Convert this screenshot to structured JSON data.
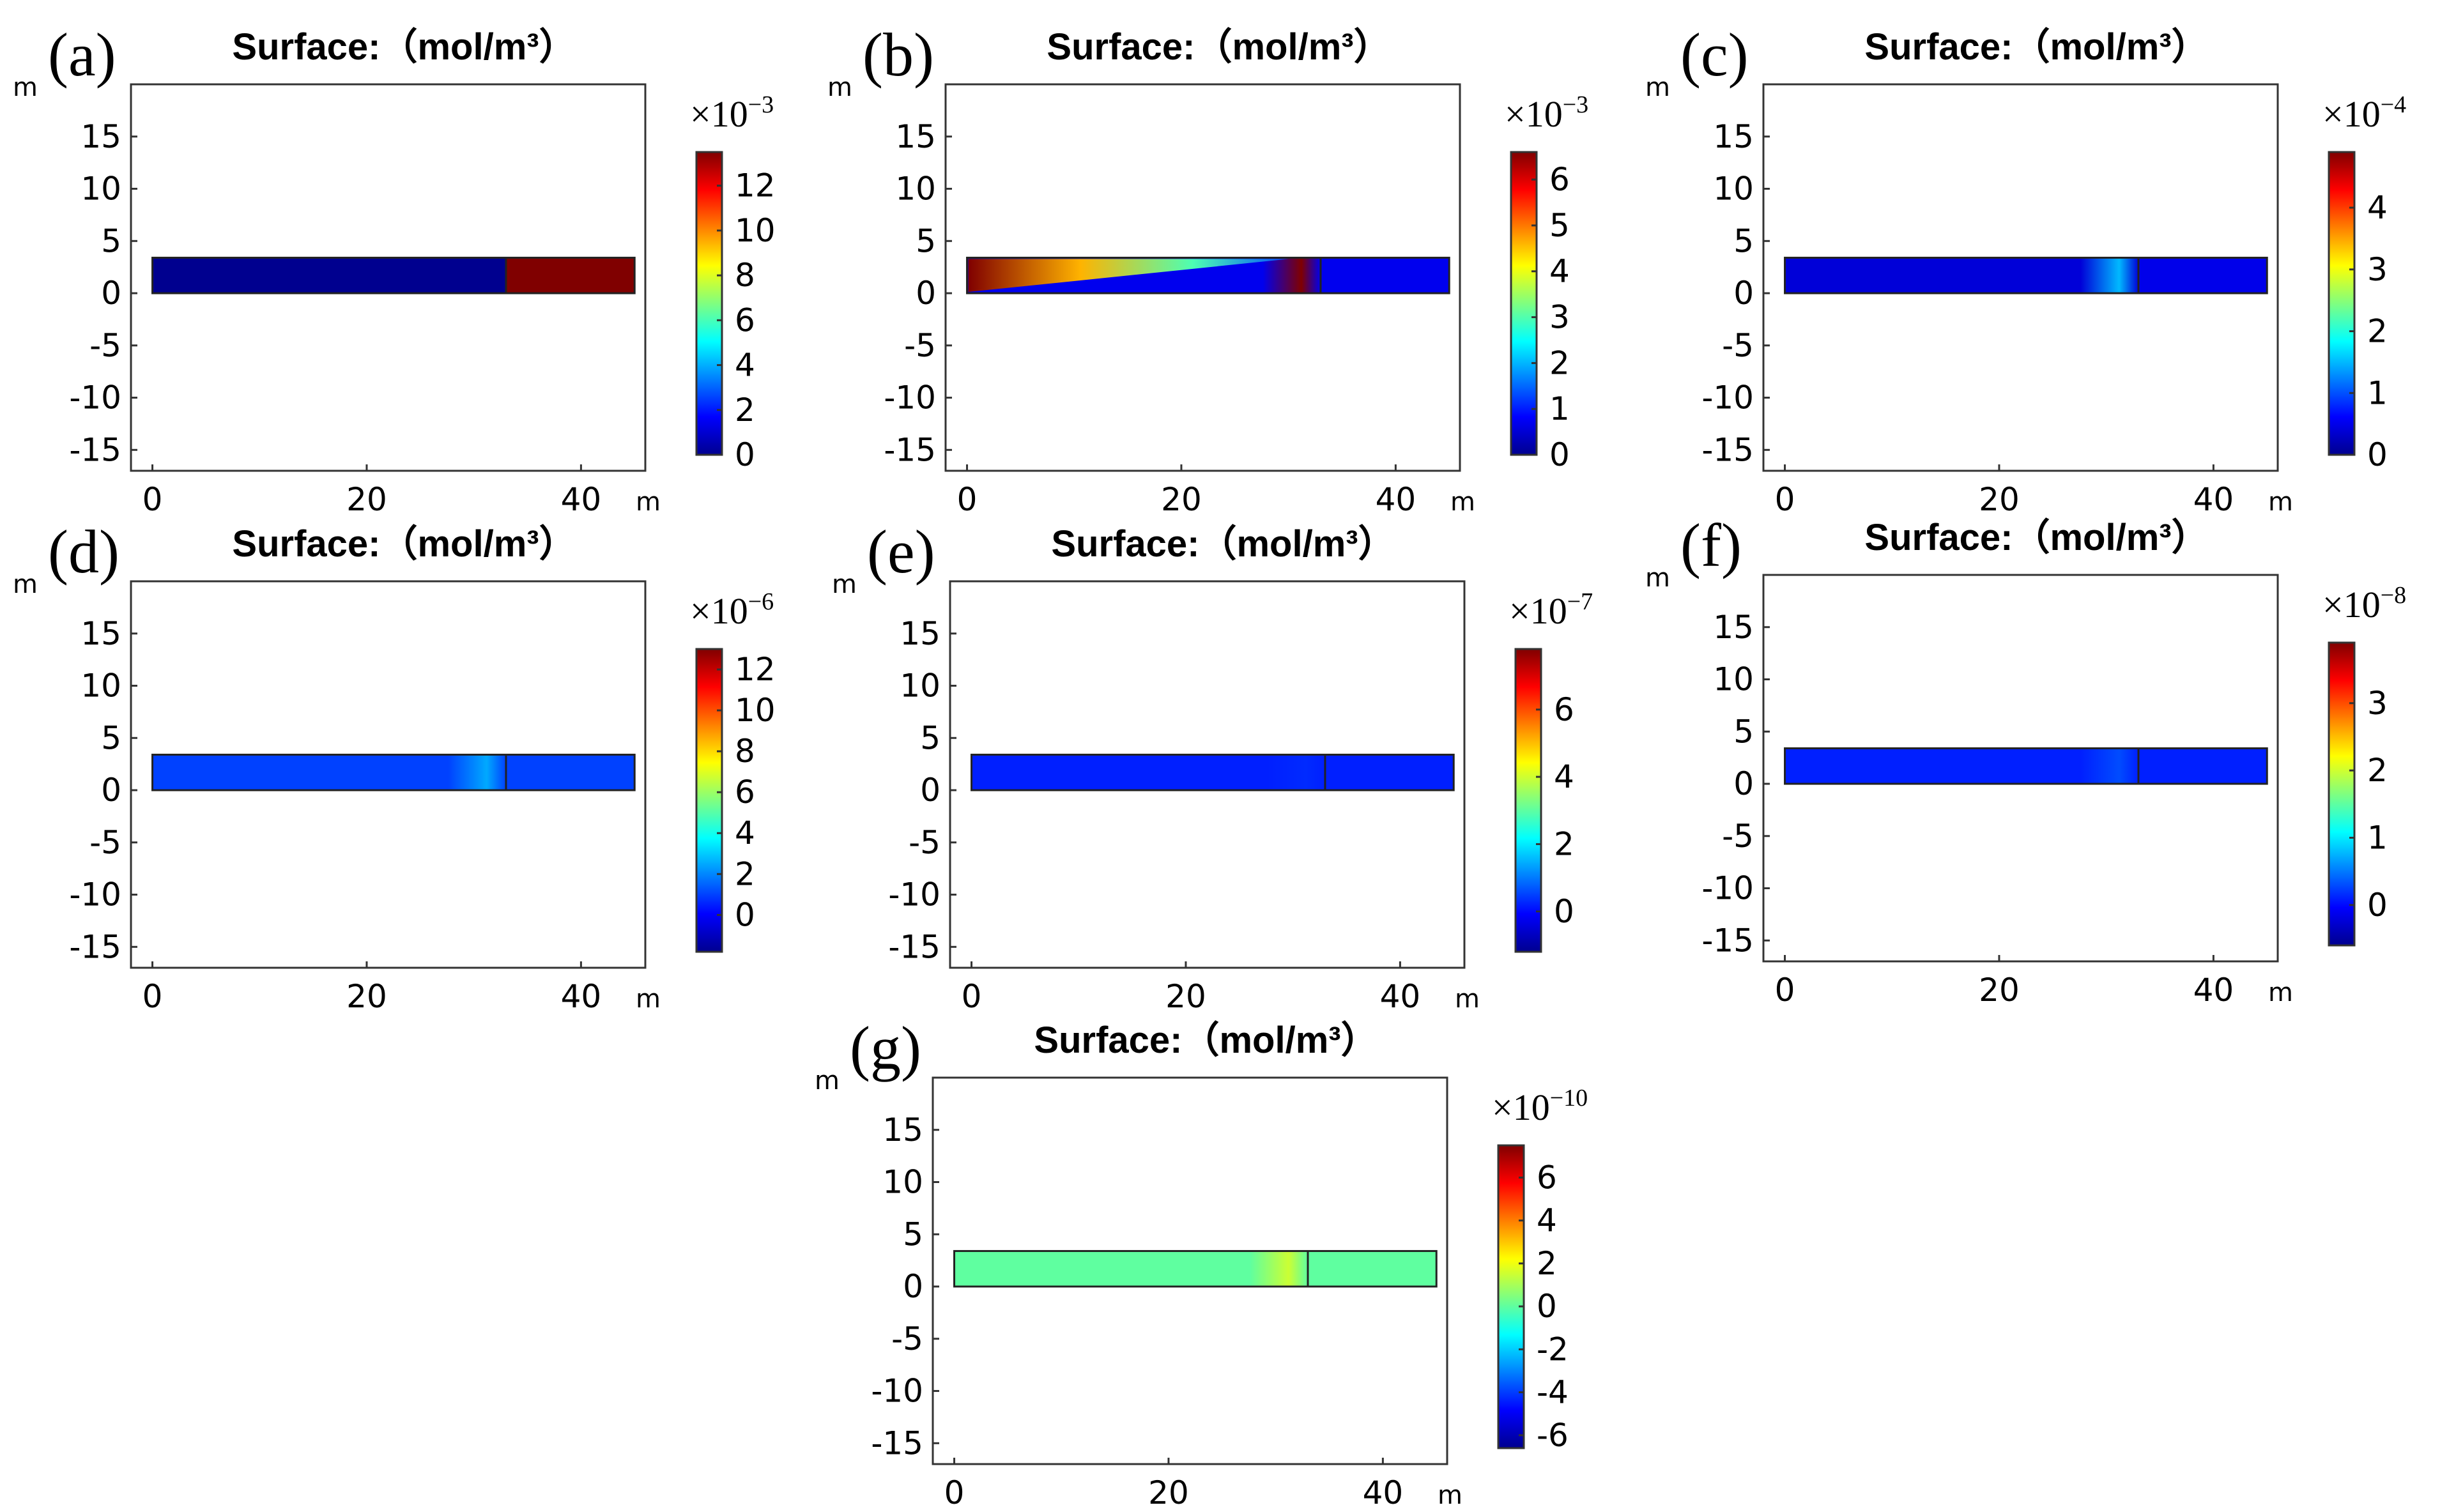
{
  "chart_data": [
    {
      "type": "heatmap",
      "panel": "(a)",
      "title": "Surface:（mol/m³）",
      "xlabel": "m",
      "ylabel": "m",
      "xlim": [
        -2,
        46
      ],
      "ylim": [
        -17,
        20
      ],
      "x_ticks": [
        "0",
        "20",
        "40"
      ],
      "x_tick_values": [
        0,
        20,
        40
      ],
      "y_ticks": [
        "15",
        "10",
        "5",
        "0",
        "-5",
        "-10",
        "-15"
      ],
      "y_tick_values": [
        15,
        10,
        5,
        0,
        -5,
        -10,
        -15
      ],
      "domain_x": [
        0,
        45
      ],
      "domain_y": [
        0,
        3.4
      ],
      "interface_x": 33,
      "colorbar": {
        "scale": "×10",
        "exponent": "−3",
        "range": [
          0,
          13.5
        ],
        "ticks": [
          "12",
          "10",
          "8",
          "6",
          "4",
          "2",
          "0"
        ],
        "tick_values": [
          12,
          10,
          8,
          6,
          4,
          2,
          0
        ]
      },
      "field": {
        "left_value": 0,
        "right_value": 13.5,
        "plume": 0
      }
    },
    {
      "type": "heatmap",
      "panel": "(b)",
      "title": "Surface:（mol/m³）",
      "xlabel": "m",
      "ylabel": "m",
      "xlim": [
        -2,
        46
      ],
      "ylim": [
        -17,
        20
      ],
      "x_ticks": [
        "0",
        "20",
        "40"
      ],
      "x_tick_values": [
        0,
        20,
        40
      ],
      "y_ticks": [
        "15",
        "10",
        "5",
        "0",
        "-5",
        "-10",
        "-15"
      ],
      "y_tick_values": [
        15,
        10,
        5,
        0,
        -5,
        -10,
        -15
      ],
      "domain_x": [
        0,
        45
      ],
      "domain_y": [
        0,
        3.4
      ],
      "interface_x": 33,
      "colorbar": {
        "scale": "×10",
        "exponent": "−3",
        "range": [
          0,
          6.6
        ],
        "ticks": [
          "6",
          "5",
          "4",
          "3",
          "2",
          "1",
          "0"
        ],
        "tick_values": [
          6,
          5,
          4,
          3,
          2,
          1,
          0
        ]
      },
      "field": {
        "left_value": 0.7,
        "right_value": 0.7,
        "plume": 6.6
      }
    },
    {
      "type": "heatmap",
      "panel": "(c)",
      "title": "Surface:（mol/m³）",
      "xlabel": "m",
      "ylabel": "m",
      "xlim": [
        -2,
        46
      ],
      "ylim": [
        -17,
        20
      ],
      "x_ticks": [
        "0",
        "20",
        "40"
      ],
      "x_tick_values": [
        0,
        20,
        40
      ],
      "y_ticks": [
        "15",
        "10",
        "5",
        "0",
        "-5",
        "-10",
        "-15"
      ],
      "y_tick_values": [
        15,
        10,
        5,
        0,
        -5,
        -10,
        -15
      ],
      "domain_x": [
        0,
        45
      ],
      "domain_y": [
        0,
        3.4
      ],
      "interface_x": 33,
      "colorbar": {
        "scale": "×10",
        "exponent": "−4",
        "range": [
          0,
          4.9
        ],
        "ticks": [
          "4",
          "3",
          "2",
          "1",
          "0"
        ],
        "tick_values": [
          4,
          3,
          2,
          1,
          0
        ]
      },
      "field": {
        "left_value": 0.4,
        "right_value": 0.5,
        "plume": 1.5
      }
    },
    {
      "type": "heatmap",
      "panel": "(d)",
      "title": "Surface:（mol/m³）",
      "xlabel": "m",
      "ylabel": "m",
      "xlim": [
        -2,
        46
      ],
      "ylim": [
        -17,
        20
      ],
      "x_ticks": [
        "0",
        "20",
        "40"
      ],
      "x_tick_values": [
        0,
        20,
        40
      ],
      "y_ticks": [
        "15",
        "10",
        "5",
        "0",
        "-5",
        "-10",
        "-15"
      ],
      "y_tick_values": [
        15,
        10,
        5,
        0,
        -5,
        -10,
        -15
      ],
      "domain_x": [
        0,
        45
      ],
      "domain_y": [
        0,
        3.4
      ],
      "interface_x": 33,
      "colorbar": {
        "scale": "×10",
        "exponent": "−6",
        "range": [
          -1.8,
          13
        ],
        "ticks": [
          "12",
          "10",
          "8",
          "6",
          "4",
          "2",
          "0"
        ],
        "tick_values": [
          12,
          10,
          8,
          6,
          4,
          2,
          0
        ]
      },
      "field": {
        "left_value": 1.0,
        "right_value": 1.0,
        "plume": 2.5
      }
    },
    {
      "type": "heatmap",
      "panel": "(e)",
      "title": "Surface:（mol/m³）",
      "xlabel": "m",
      "ylabel": "m",
      "xlim": [
        -2,
        46
      ],
      "ylim": [
        -17,
        20
      ],
      "x_ticks": [
        "0",
        "20",
        "40"
      ],
      "x_tick_values": [
        0,
        20,
        40
      ],
      "y_ticks": [
        "15",
        "10",
        "5",
        "0",
        "-5",
        "-10",
        "-15"
      ],
      "y_tick_values": [
        15,
        10,
        5,
        0,
        -5,
        -10,
        -15
      ],
      "domain_x": [
        0,
        45
      ],
      "domain_y": [
        0,
        3.4
      ],
      "interface_x": 33,
      "colorbar": {
        "scale": "×10",
        "exponent": "−7",
        "range": [
          -1.2,
          7.8
        ],
        "ticks": [
          "6",
          "4",
          "2",
          "0"
        ],
        "tick_values": [
          6,
          4,
          2,
          0
        ]
      },
      "field": {
        "left_value": 0.2,
        "right_value": 0.2,
        "plume": 0.3
      }
    },
    {
      "type": "heatmap",
      "panel": "(f)",
      "title": "Surface:（mol/m³）",
      "xlabel": "m",
      "ylabel": "m",
      "xlim": [
        -2,
        46
      ],
      "ylim": [
        -17,
        20
      ],
      "x_ticks": [
        "0",
        "20",
        "40"
      ],
      "x_tick_values": [
        0,
        20,
        40
      ],
      "y_ticks": [
        "15",
        "10",
        "5",
        "0",
        "-5",
        "-10",
        "-15"
      ],
      "y_tick_values": [
        15,
        10,
        5,
        0,
        -5,
        -10,
        -15
      ],
      "domain_x": [
        0,
        45
      ],
      "domain_y": [
        0,
        3.4
      ],
      "interface_x": 33,
      "colorbar": {
        "scale": "×10",
        "exponent": "−8",
        "range": [
          -0.6,
          3.9
        ],
        "ticks": [
          "3",
          "2",
          "1",
          "0"
        ],
        "tick_values": [
          3,
          2,
          1,
          0
        ]
      },
      "field": {
        "left_value": 0.1,
        "right_value": 0.1,
        "plume": 0.3
      }
    },
    {
      "type": "heatmap",
      "panel": "(g)",
      "title": "Surface:（mol/m³）",
      "xlabel": "m",
      "ylabel": "m",
      "xlim": [
        -2,
        46
      ],
      "ylim": [
        -17,
        20
      ],
      "x_ticks": [
        "0",
        "20",
        "40"
      ],
      "x_tick_values": [
        0,
        20,
        40
      ],
      "y_ticks": [
        "15",
        "10",
        "5",
        "0",
        "-5",
        "-10",
        "-15"
      ],
      "y_tick_values": [
        15,
        10,
        5,
        0,
        -5,
        -10,
        -15
      ],
      "domain_x": [
        0,
        45
      ],
      "domain_y": [
        0,
        3.4
      ],
      "interface_x": 33,
      "colorbar": {
        "scale": "×10",
        "exponent": "−10",
        "range": [
          -6.6,
          7.5
        ],
        "ticks": [
          "6",
          "4",
          "2",
          "0",
          "-2",
          "-4",
          "-6"
        ],
        "tick_values": [
          6,
          4,
          2,
          0,
          -2,
          -4,
          -6
        ]
      },
      "field": {
        "left_value": 0,
        "right_value": 0,
        "plume": 1.5
      }
    }
  ]
}
